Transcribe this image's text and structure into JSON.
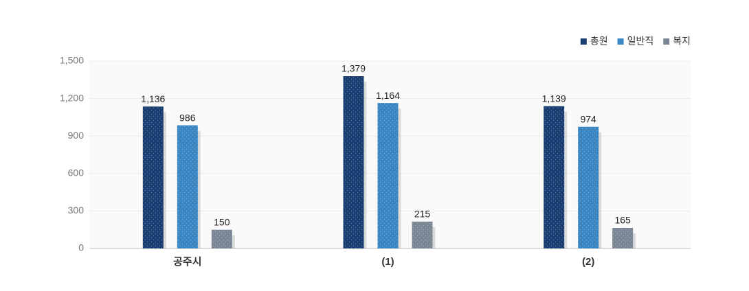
{
  "chart_data": {
    "type": "bar",
    "categories": [
      "공주시",
      "(1)",
      "(2)"
    ],
    "series": [
      {
        "name": "총원",
        "color": "#1b3e72",
        "values": [
          1136,
          1379,
          1139
        ],
        "value_labels": [
          "1,136",
          "1,379",
          "1,139"
        ]
      },
      {
        "name": "일반직",
        "color": "#3a86c3",
        "values": [
          986,
          1164,
          974
        ],
        "value_labels": [
          "986",
          "1,164",
          "974"
        ]
      },
      {
        "name": "복지",
        "color": "#7b8694",
        "values": [
          150,
          215,
          165
        ],
        "value_labels": [
          "150",
          "215",
          "165"
        ]
      }
    ],
    "ylim": [
      0,
      1500
    ],
    "yticks": [
      0,
      300,
      600,
      900,
      {
        "value": 1200,
        "label": "1,200"
      },
      {
        "value": 1500,
        "label": "1,500"
      }
    ],
    "grid": true,
    "legend": "top-right"
  }
}
